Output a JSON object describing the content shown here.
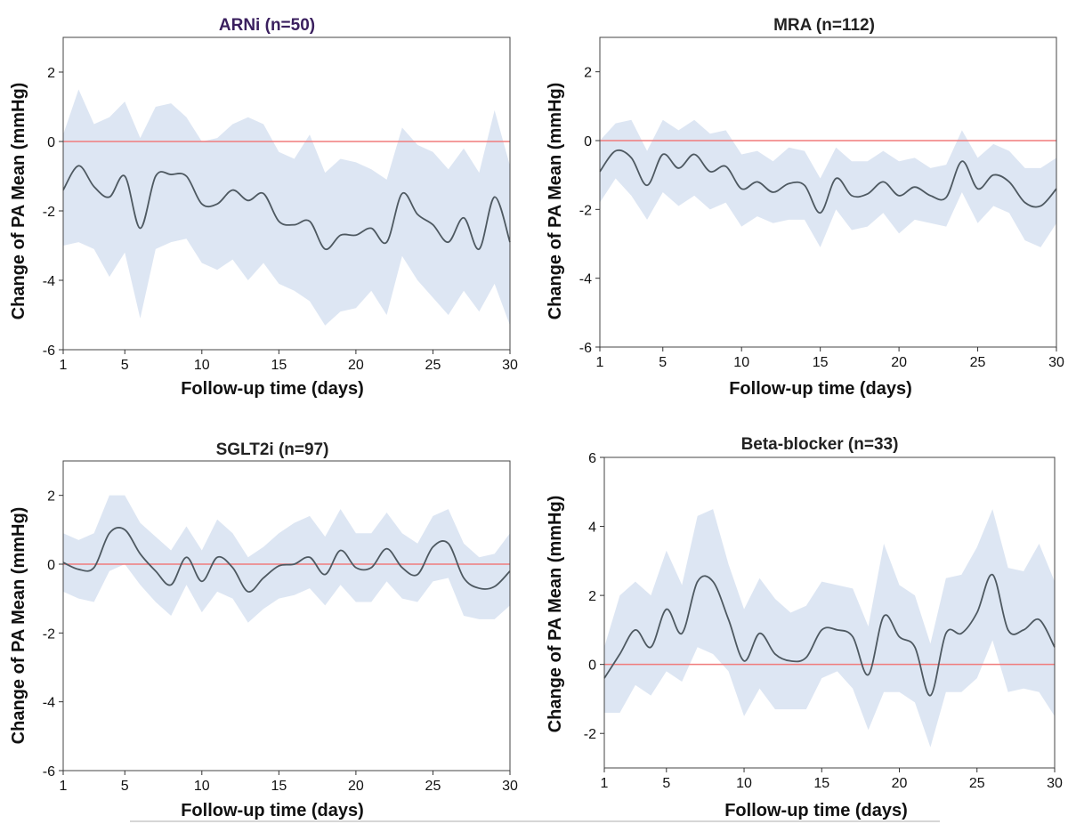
{
  "figure": {
    "bottom_rule": true
  },
  "colors": {
    "band": "#dde6f3",
    "mean_line": "#4e5961",
    "reference_line": "#f07c7c",
    "title_purple": "#3a1f5e",
    "title_dark": "#222222"
  },
  "chart_data": [
    {
      "type": "line",
      "title": "ARNi (n=50)",
      "title_color": "#3a1f5e",
      "xlabel": "Follow-up time (days)",
      "ylabel": "Change of PA Mean (mmHg)",
      "xlim": [
        1,
        30
      ],
      "ylim": [
        -6,
        3
      ],
      "xticks": [
        1,
        5,
        10,
        15,
        20,
        25,
        30
      ],
      "yticks": [
        -6,
        -4,
        -2,
        0,
        2
      ],
      "reference_line": 0,
      "grid": false,
      "x": [
        1,
        2,
        3,
        4,
        5,
        6,
        7,
        8,
        9,
        10,
        11,
        12,
        13,
        14,
        15,
        16,
        17,
        18,
        19,
        20,
        21,
        22,
        23,
        24,
        25,
        26,
        27,
        28,
        29,
        30
      ],
      "series": [
        {
          "mean": [
            -1.4,
            -0.7,
            -1.3,
            -1.6,
            -1.0,
            -2.5,
            -1.0,
            -0.95,
            -1.0,
            -1.8,
            -1.8,
            -1.4,
            -1.7,
            -1.5,
            -2.3,
            -2.4,
            -2.3,
            -3.1,
            -2.7,
            -2.7,
            -2.5,
            -2.9,
            -1.5,
            -2.1,
            -2.4,
            -2.9,
            -2.2,
            -3.1,
            -1.6,
            -2.9
          ],
          "upper": [
            0.2,
            1.5,
            0.5,
            0.7,
            1.15,
            0.1,
            1.0,
            1.1,
            0.7,
            0.0,
            0.1,
            0.5,
            0.7,
            0.5,
            -0.3,
            -0.5,
            0.2,
            -0.9,
            -0.5,
            -0.6,
            -0.8,
            -1.1,
            0.4,
            -0.1,
            -0.3,
            -0.8,
            -0.2,
            -0.9,
            0.9,
            -0.7
          ],
          "lower": [
            -3.0,
            -2.9,
            -3.1,
            -3.9,
            -3.2,
            -5.1,
            -3.1,
            -2.9,
            -2.8,
            -3.5,
            -3.7,
            -3.4,
            -4.0,
            -3.5,
            -4.1,
            -4.3,
            -4.6,
            -5.3,
            -4.9,
            -4.8,
            -4.3,
            -5.0,
            -3.3,
            -4.0,
            -4.5,
            -5.0,
            -4.3,
            -4.9,
            -4.1,
            -5.3
          ]
        }
      ]
    },
    {
      "type": "line",
      "title": "MRA (n=112)",
      "title_color": "#222222",
      "xlabel": "Follow-up time (days)",
      "ylabel": "Change of PA Mean (mmHg)",
      "xlim": [
        1,
        30
      ],
      "ylim": [
        -6,
        3
      ],
      "xticks": [
        1,
        5,
        10,
        15,
        20,
        25,
        30
      ],
      "yticks": [
        -6,
        -4,
        -2,
        0,
        2
      ],
      "reference_line": 0,
      "grid": false,
      "x": [
        1,
        2,
        3,
        4,
        5,
        6,
        7,
        8,
        9,
        10,
        11,
        12,
        13,
        14,
        15,
        16,
        17,
        18,
        19,
        20,
        21,
        22,
        23,
        24,
        25,
        26,
        27,
        28,
        29,
        30
      ],
      "series": [
        {
          "mean": [
            -0.9,
            -0.3,
            -0.5,
            -1.3,
            -0.4,
            -0.8,
            -0.4,
            -0.9,
            -0.75,
            -1.4,
            -1.2,
            -1.5,
            -1.25,
            -1.3,
            -2.1,
            -1.1,
            -1.6,
            -1.55,
            -1.2,
            -1.6,
            -1.35,
            -1.6,
            -1.65,
            -0.6,
            -1.4,
            -1.0,
            -1.2,
            -1.8,
            -1.9,
            -1.4
          ],
          "upper": [
            0.0,
            0.5,
            0.6,
            -0.3,
            0.6,
            0.3,
            0.6,
            0.2,
            0.3,
            -0.4,
            -0.3,
            -0.6,
            -0.2,
            -0.3,
            -1.1,
            -0.2,
            -0.6,
            -0.6,
            -0.3,
            -0.6,
            -0.5,
            -0.8,
            -0.7,
            0.3,
            -0.5,
            -0.1,
            -0.3,
            -0.8,
            -0.8,
            -0.5
          ],
          "lower": [
            -1.8,
            -1.1,
            -1.6,
            -2.3,
            -1.5,
            -1.9,
            -1.6,
            -2.0,
            -1.8,
            -2.5,
            -2.2,
            -2.4,
            -2.3,
            -2.3,
            -3.1,
            -2.0,
            -2.6,
            -2.5,
            -2.1,
            -2.7,
            -2.3,
            -2.4,
            -2.5,
            -1.5,
            -2.4,
            -1.9,
            -2.1,
            -2.9,
            -3.1,
            -2.4
          ]
        }
      ]
    },
    {
      "type": "line",
      "title": "SGLT2i (n=97)",
      "title_color": "#222222",
      "xlabel": "Follow-up time (days)",
      "ylabel": "Change of PA Mean (mmHg)",
      "xlim": [
        1,
        30
      ],
      "ylim": [
        -6,
        3
      ],
      "xticks": [
        1,
        5,
        10,
        15,
        20,
        25,
        30
      ],
      "yticks": [
        -6,
        -4,
        -2,
        0,
        2
      ],
      "reference_line": 0,
      "grid": false,
      "x": [
        1,
        2,
        3,
        4,
        5,
        6,
        7,
        8,
        9,
        10,
        11,
        12,
        13,
        14,
        15,
        16,
        17,
        18,
        19,
        20,
        21,
        22,
        23,
        24,
        25,
        26,
        27,
        28,
        29,
        30
      ],
      "series": [
        {
          "mean": [
            0.05,
            -0.15,
            -0.1,
            0.9,
            1.0,
            0.3,
            -0.2,
            -0.6,
            0.2,
            -0.5,
            0.2,
            -0.1,
            -0.8,
            -0.4,
            -0.05,
            0.0,
            0.2,
            -0.3,
            0.4,
            -0.1,
            -0.1,
            0.45,
            -0.1,
            -0.3,
            0.5,
            0.6,
            -0.4,
            -0.7,
            -0.65,
            -0.2
          ],
          "upper": [
            0.9,
            0.7,
            0.9,
            2.0,
            2.0,
            1.2,
            0.8,
            0.4,
            1.1,
            0.4,
            1.3,
            0.9,
            0.2,
            0.5,
            0.9,
            1.2,
            1.4,
            0.8,
            1.6,
            0.9,
            0.9,
            1.5,
            0.9,
            0.6,
            1.4,
            1.6,
            0.6,
            0.2,
            0.3,
            0.9
          ],
          "lower": [
            -0.8,
            -1.0,
            -1.1,
            -0.2,
            0.0,
            -0.6,
            -1.1,
            -1.5,
            -0.6,
            -1.4,
            -0.8,
            -1.0,
            -1.7,
            -1.3,
            -1.0,
            -0.9,
            -0.7,
            -1.2,
            -0.6,
            -1.1,
            -1.1,
            -0.5,
            -1.0,
            -1.1,
            -0.5,
            -0.4,
            -1.5,
            -1.6,
            -1.6,
            -1.2
          ]
        }
      ]
    },
    {
      "type": "line",
      "title": "Beta-blocker (n=33)",
      "title_color": "#222222",
      "xlabel": "Follow-up time (days)",
      "ylabel": "Change of PA Mean (mmHg)",
      "xlim": [
        1,
        30
      ],
      "ylim": [
        -3,
        6
      ],
      "xticks": [
        1,
        5,
        10,
        15,
        20,
        25,
        30
      ],
      "yticks": [
        -2,
        0,
        2,
        4,
        6
      ],
      "reference_line": 0,
      "grid": false,
      "x": [
        1,
        2,
        3,
        4,
        5,
        6,
        7,
        8,
        9,
        10,
        11,
        12,
        13,
        14,
        15,
        16,
        17,
        18,
        19,
        20,
        21,
        22,
        23,
        24,
        25,
        26,
        27,
        28,
        29,
        30
      ],
      "series": [
        {
          "mean": [
            -0.4,
            0.3,
            1.0,
            0.5,
            1.6,
            0.9,
            2.4,
            2.4,
            1.3,
            0.1,
            0.9,
            0.3,
            0.1,
            0.2,
            1.0,
            1.0,
            0.8,
            -0.3,
            1.4,
            0.8,
            0.5,
            -0.9,
            0.9,
            0.9,
            1.5,
            2.6,
            1.0,
            1.0,
            1.3,
            0.5
          ],
          "upper": [
            0.5,
            2.0,
            2.4,
            2.0,
            3.3,
            2.3,
            4.3,
            4.5,
            2.9,
            1.6,
            2.5,
            1.9,
            1.5,
            1.7,
            2.4,
            2.3,
            2.2,
            1.1,
            3.5,
            2.3,
            2.0,
            0.6,
            2.5,
            2.6,
            3.4,
            4.5,
            2.8,
            2.7,
            3.5,
            2.4
          ],
          "lower": [
            -1.4,
            -1.4,
            -0.6,
            -0.9,
            -0.2,
            -0.5,
            0.5,
            0.3,
            -0.2,
            -1.5,
            -0.7,
            -1.3,
            -1.3,
            -1.3,
            -0.4,
            -0.2,
            -0.7,
            -1.9,
            -0.8,
            -0.8,
            -1.1,
            -2.4,
            -0.8,
            -0.8,
            -0.4,
            0.7,
            -0.8,
            -0.7,
            -0.8,
            -1.5
          ]
        }
      ]
    }
  ]
}
